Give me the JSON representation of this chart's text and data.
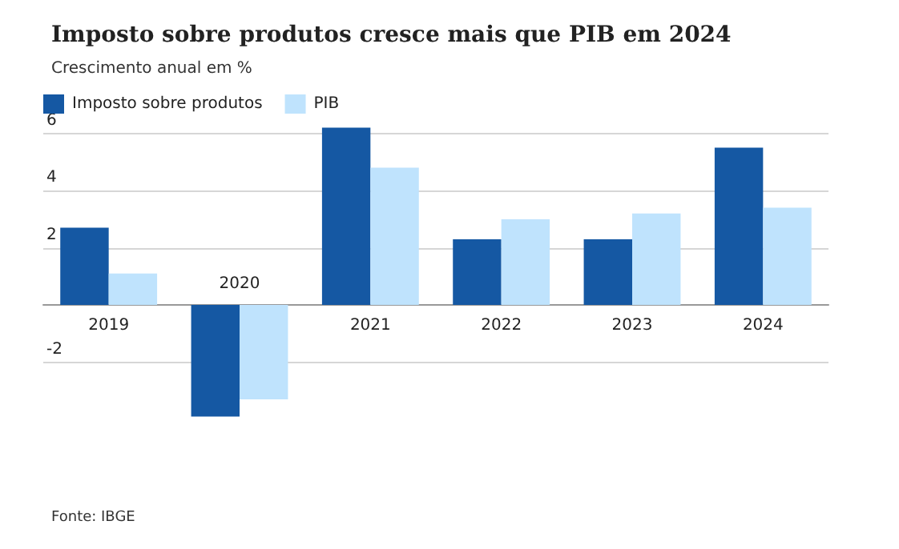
{
  "chart_data": {
    "type": "bar",
    "title": "Imposto sobre produtos cresce mais que PIB em 2024",
    "subtitle": "Crescimento anual em %",
    "categories": [
      "2019",
      "2020",
      "2021",
      "2022",
      "2023",
      "2024"
    ],
    "series": [
      {
        "name": "Imposto sobre produtos",
        "color": "#1558a3",
        "values": [
          2.7,
          -3.9,
          6.2,
          2.3,
          2.3,
          5.5
        ]
      },
      {
        "name": "PIB",
        "color": "#bfe3fd",
        "values": [
          1.1,
          -3.3,
          4.8,
          3.0,
          3.2,
          3.4
        ]
      }
    ],
    "ylim": [
      -4,
      6.3
    ],
    "yticks": [
      -2,
      2,
      4,
      6
    ],
    "grid": "y",
    "legend": "top left",
    "annotations": [
      "Fonte: IBGE"
    ]
  }
}
